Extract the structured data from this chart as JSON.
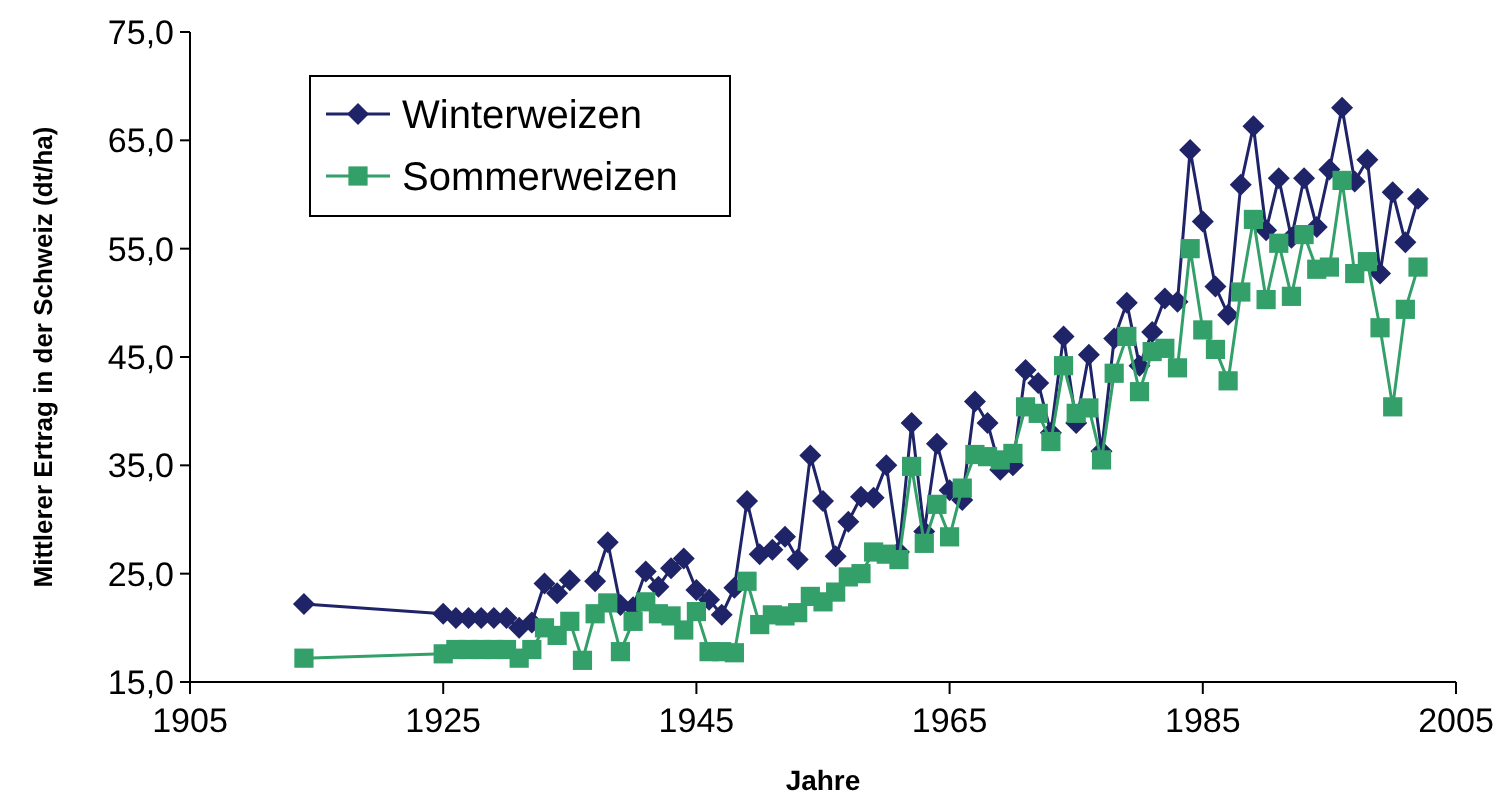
{
  "chart_data": {
    "type": "line",
    "xlabel": "Jahre",
    "ylabel": "Mittlerer Ertrag in der Schweiz (dt/ha)",
    "x": [
      1914,
      1925,
      1926,
      1927,
      1928,
      1929,
      1930,
      1931,
      1932,
      1933,
      1934,
      1935,
      1936,
      1937,
      1938,
      1939,
      1940,
      1941,
      1942,
      1943,
      1944,
      1945,
      1946,
      1947,
      1948,
      1949,
      1950,
      1951,
      1952,
      1953,
      1954,
      1955,
      1956,
      1957,
      1958,
      1959,
      1960,
      1961,
      1962,
      1963,
      1964,
      1965,
      1966,
      1967,
      1968,
      1969,
      1970,
      1971,
      1972,
      1973,
      1974,
      1975,
      1976,
      1977,
      1978,
      1979,
      1980,
      1981,
      1982,
      1983,
      1984,
      1985,
      1986,
      1987,
      1988,
      1989,
      1990,
      1991,
      1992,
      1993,
      1994,
      1995,
      1996,
      1997,
      1998,
      1999,
      2000,
      2001,
      2002
    ],
    "series": [
      {
        "name": "Winterweizen",
        "color": "#1f2468",
        "marker": "diamond",
        "values": [
          22.2,
          21.3,
          20.9,
          20.9,
          20.9,
          20.9,
          20.9,
          20.0,
          20.5,
          24.1,
          23.2,
          24.4,
          null,
          24.3,
          27.9,
          22.1,
          21.9,
          25.2,
          23.8,
          25.5,
          26.4,
          23.5,
          22.6,
          21.2,
          23.7,
          31.7,
          26.8,
          27.2,
          28.4,
          26.3,
          35.9,
          31.7,
          26.6,
          29.8,
          32.1,
          32.0,
          35.0,
          27.0,
          38.9,
          28.9,
          37.0,
          32.7,
          31.8,
          40.9,
          38.9,
          34.6,
          35.0,
          43.8,
          42.6,
          38.0,
          46.9,
          38.9,
          45.2,
          36.3,
          46.7,
          50.0,
          44.2,
          47.3,
          50.4,
          50.1,
          64.1,
          57.5,
          51.5,
          48.9,
          60.9,
          66.3,
          56.7,
          61.5,
          56.0,
          61.5,
          57.0,
          62.3,
          68.0,
          61.2,
          63.2,
          52.7,
          60.2,
          55.6,
          59.6
        ]
      },
      {
        "name": "Sommerweizen",
        "color": "#33a06a",
        "marker": "square",
        "values": [
          17.2,
          17.6,
          18.0,
          18.0,
          18.0,
          18.0,
          18.0,
          17.2,
          18.0,
          20.0,
          19.3,
          20.6,
          17.0,
          21.3,
          22.3,
          17.8,
          20.6,
          22.4,
          21.3,
          21.1,
          19.8,
          21.5,
          17.8,
          17.8,
          17.7,
          24.3,
          20.3,
          21.2,
          21.1,
          21.4,
          22.9,
          22.4,
          23.3,
          24.7,
          25.0,
          27.0,
          26.8,
          26.3,
          34.9,
          27.8,
          31.4,
          28.4,
          32.9,
          36.0,
          35.8,
          35.5,
          36.1,
          40.4,
          39.8,
          37.2,
          44.2,
          39.8,
          40.3,
          35.5,
          43.5,
          46.9,
          41.8,
          45.5,
          45.8,
          44.0,
          55.0,
          47.5,
          45.7,
          42.8,
          51.0,
          57.7,
          50.3,
          55.5,
          50.6,
          56.3,
          53.1,
          53.3,
          61.3,
          52.7,
          53.8,
          47.7,
          40.4,
          49.4,
          53.3
        ]
      }
    ],
    "xlim": [
      1905,
      2005
    ],
    "xticks": [
      1905,
      1925,
      1945,
      1965,
      1985,
      2005
    ],
    "ylim": [
      15,
      75
    ],
    "yticks": [
      {
        "value": 15,
        "label": "15,0"
      },
      {
        "value": 25,
        "label": "25,0"
      },
      {
        "value": 35,
        "label": "35,0"
      },
      {
        "value": 45,
        "label": "45,0"
      },
      {
        "value": 55,
        "label": "55,0"
      },
      {
        "value": 65,
        "label": "65,0"
      },
      {
        "value": 75,
        "label": "75,0"
      }
    ],
    "grid": false,
    "legend": "top left",
    "line_style": "solid"
  }
}
